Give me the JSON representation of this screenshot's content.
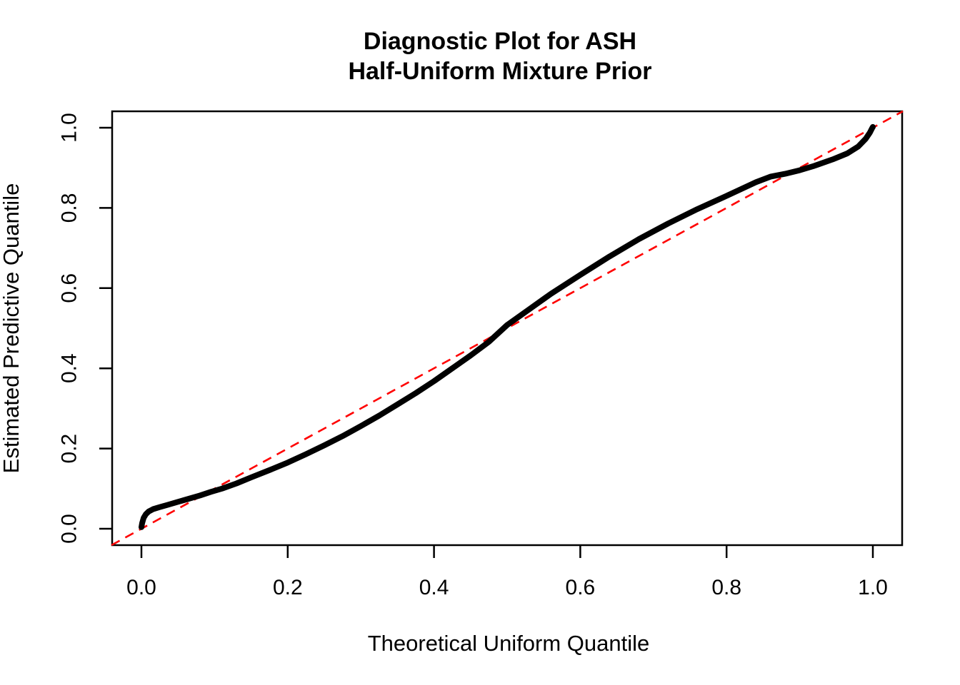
{
  "title": {
    "line1": "Diagnostic Plot for ASH",
    "line2": "Half-Uniform Mixture Prior"
  },
  "chart_data": {
    "type": "line",
    "title": "Diagnostic Plot for ASH\nHalf-Uniform Mixture Prior",
    "xlabel": "Theoretical Uniform Quantile",
    "ylabel": "Estimated Predictive Quantile",
    "xlim": [
      0,
      1
    ],
    "ylim": [
      0,
      1
    ],
    "grid": false,
    "legend": null,
    "x_ticks": [
      {
        "value": 0.0,
        "label": "0.0"
      },
      {
        "value": 0.2,
        "label": "0.2"
      },
      {
        "value": 0.4,
        "label": "0.4"
      },
      {
        "value": 0.6,
        "label": "0.6"
      },
      {
        "value": 0.8,
        "label": "0.8"
      },
      {
        "value": 1.0,
        "label": "1.0"
      }
    ],
    "y_ticks": [
      {
        "value": 0.0,
        "label": "0.0"
      },
      {
        "value": 0.2,
        "label": "0.2"
      },
      {
        "value": 0.4,
        "label": "0.4"
      },
      {
        "value": 0.6,
        "label": "0.6"
      },
      {
        "value": 0.8,
        "label": "0.8"
      },
      {
        "value": 1.0,
        "label": "1.0"
      }
    ],
    "series": [
      {
        "name": "estimated-predictive-quantile-curve",
        "color": "#000000",
        "style": "solid",
        "line_width": 8,
        "points": [
          [
            0.0,
            0.004
          ],
          [
            0.001,
            0.014
          ],
          [
            0.003,
            0.027
          ],
          [
            0.006,
            0.036
          ],
          [
            0.01,
            0.043
          ],
          [
            0.016,
            0.049
          ],
          [
            0.025,
            0.054
          ],
          [
            0.035,
            0.059
          ],
          [
            0.05,
            0.067
          ],
          [
            0.065,
            0.075
          ],
          [
            0.08,
            0.083
          ],
          [
            0.095,
            0.092
          ],
          [
            0.11,
            0.1
          ],
          [
            0.13,
            0.113
          ],
          [
            0.15,
            0.128
          ],
          [
            0.175,
            0.146
          ],
          [
            0.2,
            0.165
          ],
          [
            0.225,
            0.186
          ],
          [
            0.25,
            0.208
          ],
          [
            0.275,
            0.231
          ],
          [
            0.3,
            0.256
          ],
          [
            0.325,
            0.282
          ],
          [
            0.35,
            0.31
          ],
          [
            0.375,
            0.338
          ],
          [
            0.4,
            0.368
          ],
          [
            0.425,
            0.4
          ],
          [
            0.45,
            0.432
          ],
          [
            0.475,
            0.466
          ],
          [
            0.5,
            0.508
          ],
          [
            0.53,
            0.547
          ],
          [
            0.56,
            0.586
          ],
          [
            0.6,
            0.633
          ],
          [
            0.64,
            0.679
          ],
          [
            0.68,
            0.722
          ],
          [
            0.72,
            0.761
          ],
          [
            0.76,
            0.797
          ],
          [
            0.8,
            0.83
          ],
          [
            0.84,
            0.864
          ],
          [
            0.86,
            0.878
          ],
          [
            0.88,
            0.885
          ],
          [
            0.9,
            0.894
          ],
          [
            0.92,
            0.905
          ],
          [
            0.945,
            0.921
          ],
          [
            0.965,
            0.936
          ],
          [
            0.98,
            0.953
          ],
          [
            0.99,
            0.972
          ],
          [
            0.996,
            0.988
          ],
          [
            0.999,
            0.999
          ],
          [
            1.0,
            1.002
          ]
        ]
      },
      {
        "name": "y-equals-x-reference-line",
        "color": "#FF0000",
        "style": "dashed",
        "line_width": 2.6,
        "points": [
          [
            -0.0409,
            -0.0409
          ],
          [
            1.0409,
            1.0409
          ]
        ]
      }
    ]
  },
  "colors": {
    "curve": "#000000",
    "reference": "#FF0000",
    "axis": "#000000",
    "background": "#FFFFFF"
  }
}
